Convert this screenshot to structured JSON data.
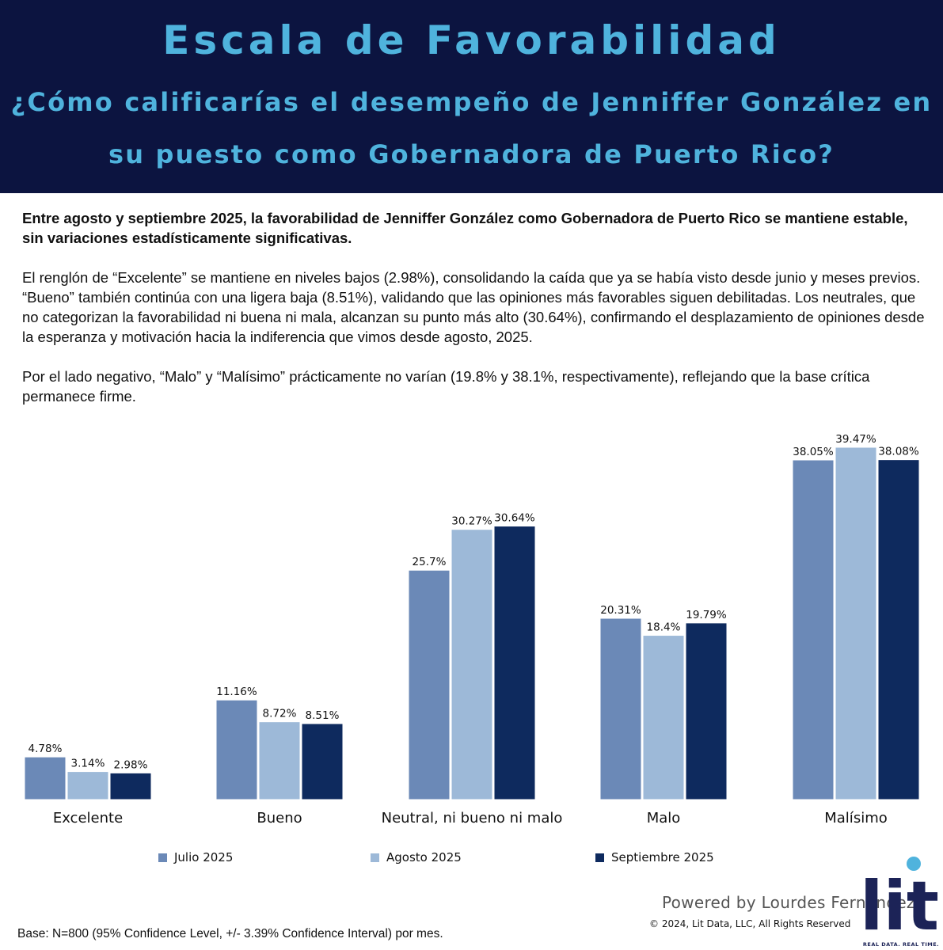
{
  "header": {
    "title": "Escala de Favorabilidad",
    "question_line1": "¿Cómo calificarías el desempeño de Jenniffer González en",
    "question_line2": "su puesto como Gobernadora de Puerto Rico?"
  },
  "intro": {
    "lead": "Entre agosto y septiembre 2025, la favorabilidad de Jenniffer González como Gobernadora de Puerto Rico se mantiene estable, sin variaciones estadísticamente significativas.",
    "paragraph1": "El renglón de “Excelente” se mantiene en niveles bajos (2.98%), consolidando la caída que ya se había visto desde junio y meses previos. “Bueno” también continúa con una ligera baja (8.51%), validando que las opiniones más favorables siguen debilitadas. Los neutrales, que no categorizan la favorabilidad ni buena ni mala,  alcanzan su punto más alto (30.64%), confirmando el desplazamiento de opiniones desde la esperanza y motivación hacia la indiferencia que vimos desde agosto, 2025.",
    "paragraph2": "Por el lado negativo, “Malo” y “Malísimo” prácticamente no varían (19.8% y 38.1%, respectivamente), reflejando que la base crítica permanece firme."
  },
  "chart_data": {
    "type": "bar",
    "categories": [
      "Excelente",
      "Bueno",
      "Neutral, ni bueno ni malo",
      "Malo",
      "Malísimo"
    ],
    "series": [
      {
        "name": "Julio 2025",
        "values": [
          4.78,
          11.16,
          25.7,
          20.31,
          38.05
        ],
        "labels": [
          "4.78%",
          "11.16%",
          "25.7%",
          "20.31%",
          "38.05%"
        ],
        "color": "#6b89b7"
      },
      {
        "name": "Agosto 2025",
        "values": [
          3.14,
          8.72,
          30.27,
          18.4,
          39.47
        ],
        "labels": [
          "3.14%",
          "8.72%",
          "30.27%",
          "18.4%",
          "39.47%"
        ],
        "color": "#9db9d8"
      },
      {
        "name": "Septiembre 2025",
        "values": [
          2.98,
          8.51,
          30.64,
          19.79,
          38.08
        ],
        "labels": [
          "2.98%",
          "8.51%",
          "30.64%",
          "19.79%",
          "38.08%"
        ],
        "color": "#0e2a5e"
      }
    ],
    "ylim": [
      0,
      40
    ],
    "grid": false,
    "legend": "bottom"
  },
  "footer": {
    "powered_by": "Powered by Lourdes Fernández",
    "copyright": "© 2024, Lit Data, LLC, All Rights Reserved",
    "base_note": "Base: N=800 (95% Confidence Level, +/- 3.39% Confidence Interval) por mes.",
    "logo_word": "lit",
    "logo_tagline": "REAL DATA. REAL TIME."
  },
  "colors": {
    "header_bg": "#0c1440",
    "header_text": "#4fb3dd",
    "logo": "#1c2357",
    "logo_dot": "#4fb3dd"
  }
}
